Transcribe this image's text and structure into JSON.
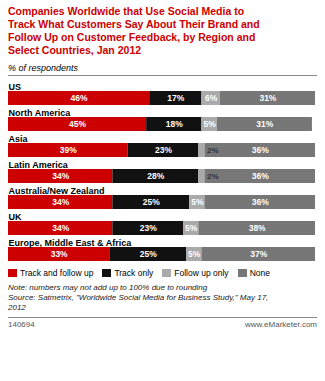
{
  "chart_data": {
    "type": "bar",
    "orientation": "horizontal",
    "stacked": true,
    "data_labels": true,
    "grid": false,
    "legend": "bottom",
    "tick_labels": "y",
    "title": "Companies Worldwide that Use Social Media to\nTrack What Customers Say About Their Brand and\nFollow Up on Customer Feedback, by Region and\nSelect Countries, Jan 2012",
    "subtitle": "% of respondents",
    "categories": [
      "US",
      "North America",
      "Asia",
      "Latin America",
      "Australia/New Zealand",
      "UK",
      "Europe, Middle East & Africa"
    ],
    "xlim": [
      0,
      100
    ],
    "series": [
      {
        "name": "Track and follow up",
        "color": "#cc0000",
        "values": [
          46,
          45,
          39,
          34,
          34,
          34,
          33
        ],
        "value_labels": [
          "46%",
          "45%",
          "39%",
          "34%",
          "34%",
          "34%",
          "33%"
        ]
      },
      {
        "name": "Track only",
        "color": "#111111",
        "values": [
          17,
          18,
          23,
          28,
          25,
          23,
          25
        ],
        "value_labels": [
          "17%",
          "18%",
          "23%",
          "28%",
          "25%",
          "23%",
          "25%"
        ]
      },
      {
        "name": "Follow up only",
        "color": "#aaaaaa",
        "values": [
          6,
          5,
          2,
          2,
          5,
          5,
          5
        ],
        "value_labels": [
          "6%",
          "5%",
          "2%",
          "2%",
          "5%",
          "5%",
          "5%"
        ]
      },
      {
        "name": "None",
        "color": "#777777",
        "values": [
          31,
          31,
          36,
          36,
          36,
          38,
          37
        ],
        "value_labels": [
          "31%",
          "31%",
          "36%",
          "36%",
          "36%",
          "38%",
          "37%"
        ]
      }
    ],
    "annotations": [
      "Note: numbers may not add up to 100% due to rounding\nSource: Satmetrix, \"Worldwide Social Media for Business Study,\" May 17,\n2012",
      "140694",
      "www.eMarketer.com"
    ]
  }
}
